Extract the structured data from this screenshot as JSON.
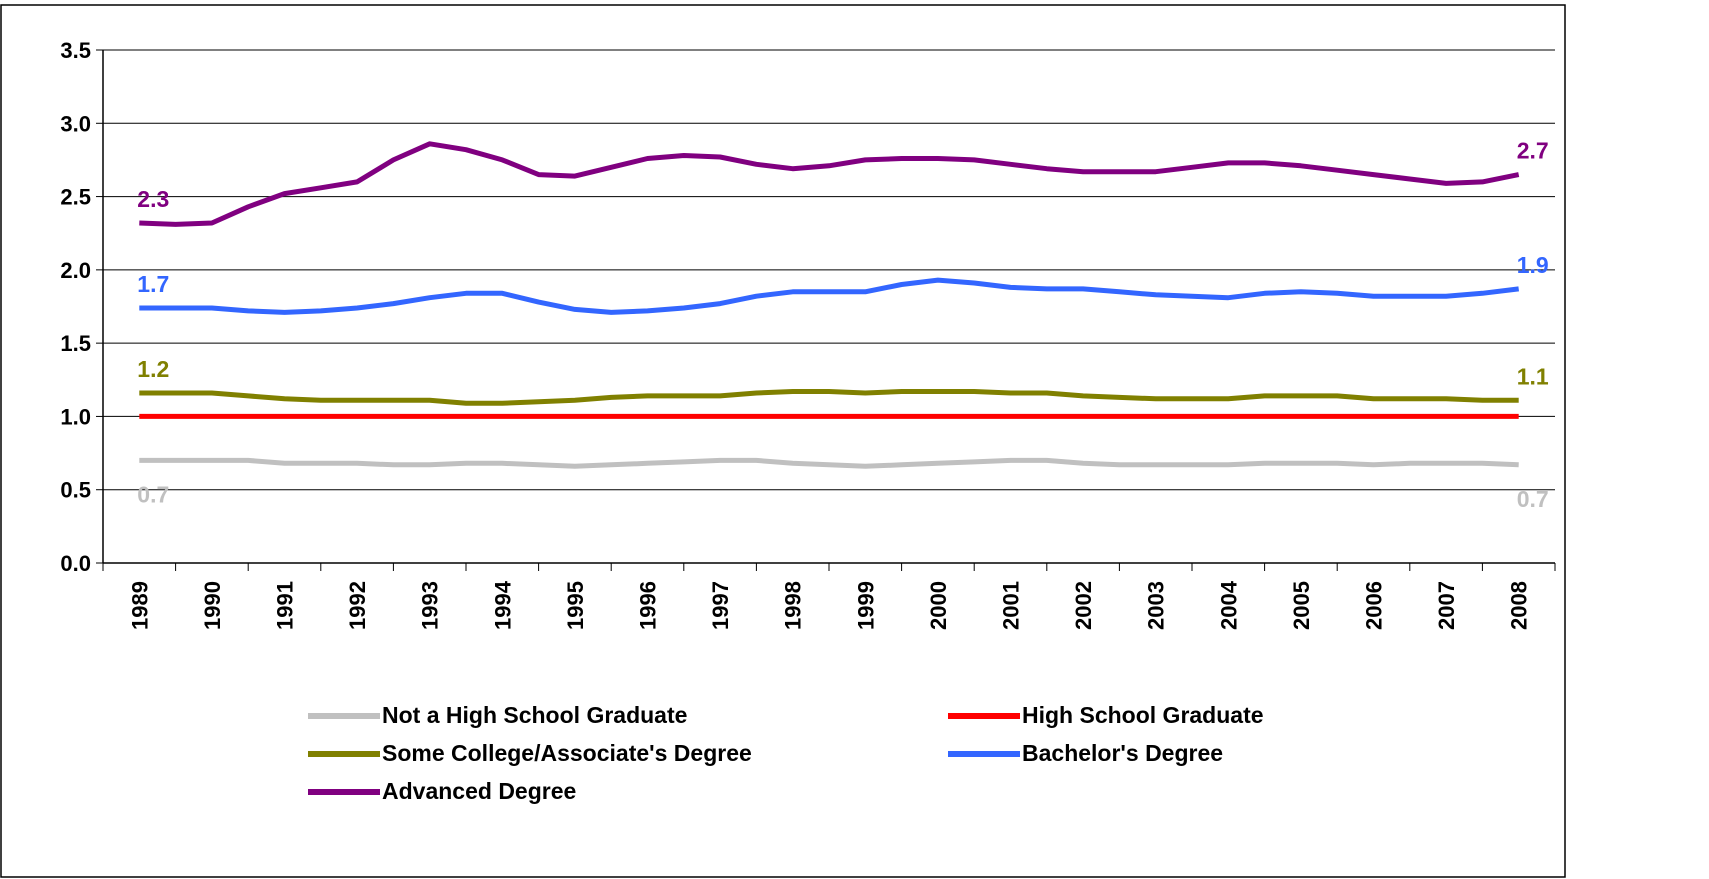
{
  "chart_data": {
    "type": "line",
    "categories": [
      "1989",
      null,
      "1990",
      null,
      "1991",
      null,
      "1992",
      null,
      "1993",
      null,
      "1994",
      null,
      "1995",
      null,
      "1996",
      null,
      "1997",
      null,
      "1998",
      null,
      "1999",
      null,
      "2000",
      null,
      "2001",
      null,
      "2002",
      null,
      "2003",
      null,
      "2004",
      null,
      "2005",
      null,
      "2006",
      null,
      "2007",
      null,
      "2008"
    ],
    "ylim": [
      0,
      3.5
    ],
    "yticks": [
      {
        "value": 0,
        "label": "0.0"
      },
      0.5,
      {
        "value": 1,
        "label": "1.0"
      },
      1.5,
      {
        "value": 2,
        "label": "2.0"
      },
      2.5,
      {
        "value": 3,
        "label": "3.0"
      },
      3.5
    ],
    "grid": true,
    "legend": "bottom",
    "series": [
      {
        "name": "Not a High School Graduate",
        "color": "#c0c0c0",
        "values": [
          0.7,
          0.7,
          0.7,
          0.7,
          0.68,
          0.68,
          0.68,
          0.67,
          0.67,
          0.68,
          0.68,
          0.67,
          0.66,
          0.67,
          0.68,
          0.69,
          0.7,
          0.7,
          0.68,
          0.67,
          0.66,
          0.67,
          0.68,
          0.69,
          0.7,
          0.7,
          0.68,
          0.67,
          0.67,
          0.67,
          0.67,
          0.68,
          0.68,
          0.68,
          0.67,
          0.68,
          0.68,
          0.68,
          0.67
        ],
        "value_labels": [
          "0.7",
          null,
          null,
          null,
          null,
          null,
          null,
          null,
          null,
          null,
          null,
          null,
          null,
          null,
          null,
          null,
          null,
          null,
          null,
          null,
          null,
          null,
          null,
          null,
          null,
          null,
          null,
          null,
          null,
          null,
          null,
          null,
          null,
          null,
          null,
          null,
          null,
          null,
          "0.7"
        ]
      },
      {
        "name": "High School Graduate",
        "color": "#ff0000",
        "values": [
          1,
          1,
          1,
          1,
          1,
          1,
          1,
          1,
          1,
          1,
          1,
          1,
          1,
          1,
          1,
          1,
          1,
          1,
          1,
          1,
          1,
          1,
          1,
          1,
          1,
          1,
          1,
          1,
          1,
          1,
          1,
          1,
          1,
          1,
          1,
          1,
          1,
          1,
          1
        ]
      },
      {
        "name": "Some College/Associate's Degree",
        "color": "#808000",
        "values": [
          1.16,
          1.16,
          1.16,
          1.14,
          1.12,
          1.11,
          1.11,
          1.11,
          1.11,
          1.09,
          1.09,
          1.1,
          1.11,
          1.13,
          1.14,
          1.14,
          1.14,
          1.16,
          1.17,
          1.17,
          1.16,
          1.17,
          1.17,
          1.17,
          1.16,
          1.16,
          1.14,
          1.13,
          1.12,
          1.12,
          1.12,
          1.14,
          1.14,
          1.14,
          1.12,
          1.12,
          1.12,
          1.11,
          1.11
        ],
        "value_labels": [
          "1.2",
          null,
          null,
          null,
          null,
          null,
          null,
          null,
          null,
          null,
          null,
          null,
          null,
          null,
          null,
          null,
          null,
          null,
          null,
          null,
          null,
          null,
          null,
          null,
          null,
          null,
          null,
          null,
          null,
          null,
          null,
          null,
          null,
          null,
          null,
          null,
          null,
          null,
          "1.1"
        ]
      },
      {
        "name": "Bachelor's Degree",
        "color": "#3366ff",
        "values": [
          1.74,
          1.74,
          1.74,
          1.72,
          1.71,
          1.72,
          1.74,
          1.77,
          1.81,
          1.84,
          1.84,
          1.78,
          1.73,
          1.71,
          1.72,
          1.74,
          1.77,
          1.82,
          1.85,
          1.85,
          1.85,
          1.9,
          1.93,
          1.91,
          1.88,
          1.87,
          1.87,
          1.85,
          1.83,
          1.82,
          1.81,
          1.84,
          1.85,
          1.84,
          1.82,
          1.82,
          1.82,
          1.84,
          1.87
        ],
        "value_labels": [
          "1.7",
          null,
          null,
          null,
          null,
          null,
          null,
          null,
          null,
          null,
          null,
          null,
          null,
          null,
          null,
          null,
          null,
          null,
          null,
          null,
          null,
          null,
          null,
          null,
          null,
          null,
          null,
          null,
          null,
          null,
          null,
          null,
          null,
          null,
          null,
          null,
          null,
          null,
          "1.9"
        ]
      },
      {
        "name": "Advanced Degree",
        "color": "#800080",
        "values": [
          2.32,
          2.31,
          2.32,
          2.43,
          2.52,
          2.56,
          2.6,
          2.75,
          2.86,
          2.82,
          2.75,
          2.65,
          2.64,
          2.7,
          2.76,
          2.78,
          2.77,
          2.72,
          2.69,
          2.71,
          2.75,
          2.76,
          2.76,
          2.75,
          2.72,
          2.69,
          2.67,
          2.67,
          2.67,
          2.7,
          2.73,
          2.73,
          2.71,
          2.68,
          2.65,
          2.62,
          2.59,
          2.6,
          2.65
        ],
        "value_labels": [
          "2.3",
          null,
          null,
          null,
          null,
          null,
          null,
          null,
          null,
          null,
          null,
          null,
          null,
          null,
          null,
          null,
          null,
          null,
          null,
          null,
          null,
          null,
          null,
          null,
          null,
          null,
          null,
          null,
          null,
          null,
          null,
          null,
          null,
          null,
          null,
          null,
          null,
          null,
          "2.7"
        ]
      }
    ]
  }
}
